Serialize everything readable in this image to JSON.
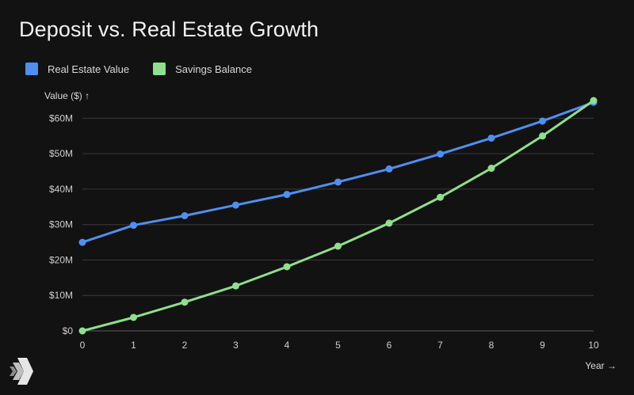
{
  "chart_data": {
    "type": "line",
    "title": "Deposit vs. Real Estate Growth",
    "ylabel": "Value ($) ↑",
    "xlabel": "Year →",
    "x": [
      0,
      1,
      2,
      3,
      4,
      5,
      6,
      7,
      8,
      9,
      10
    ],
    "ylim": [
      0,
      65
    ],
    "yticks": [
      0,
      10,
      20,
      30,
      40,
      50,
      60
    ],
    "ytick_labels": [
      "$0",
      "$10M",
      "$20M",
      "$30M",
      "$40M",
      "$50M",
      "$60M"
    ],
    "grid": true,
    "legend_position": "top-left",
    "series": [
      {
        "name": "Real Estate Value",
        "color": "#4f8ff0",
        "values": [
          25,
          29.8,
          32.5,
          35.5,
          38.5,
          42,
          45.7,
          49.9,
          54.4,
          59.2,
          64.5
        ]
      },
      {
        "name": "Savings Balance",
        "color": "#8ee08a",
        "values": [
          0,
          3.8,
          8.1,
          12.7,
          18.1,
          23.9,
          30.4,
          37.7,
          45.9,
          55.0,
          65.0
        ]
      }
    ]
  }
}
